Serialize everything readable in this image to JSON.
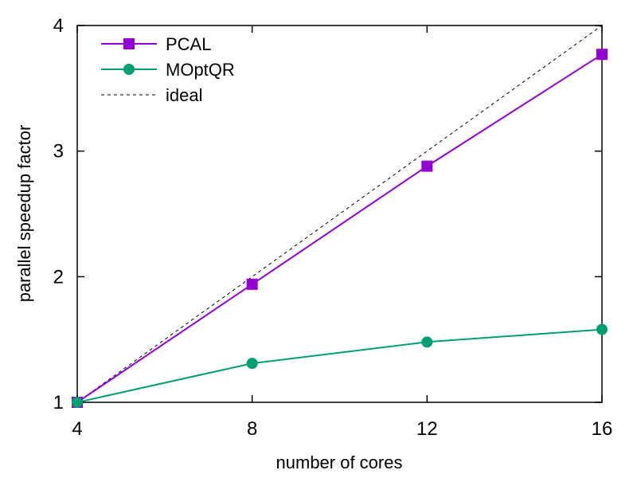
{
  "chart_data": {
    "type": "line",
    "title": "",
    "xlabel": "number of cores",
    "ylabel": "parallel speedup factor",
    "xlim": [
      4,
      16
    ],
    "ylim": [
      1,
      4
    ],
    "xticks": [
      4,
      8,
      12,
      16
    ],
    "yticks": [
      1,
      2,
      3,
      4
    ],
    "grid": false,
    "legend_position": "top-left",
    "x": [
      4,
      8,
      12,
      16
    ],
    "series": [
      {
        "name": "PCAL",
        "values": [
          1.0,
          1.94,
          2.88,
          3.77
        ],
        "color": "#9400d3",
        "marker": "square",
        "dash": "solid"
      },
      {
        "name": "MOptQR",
        "values": [
          1.0,
          1.31,
          1.48,
          1.58
        ],
        "color": "#009e73",
        "marker": "circle",
        "dash": "solid"
      },
      {
        "name": "ideal",
        "values": [
          1.0,
          2.0,
          3.0,
          4.0
        ],
        "color": "#000000",
        "marker": "none",
        "dash": "dashed"
      }
    ]
  }
}
